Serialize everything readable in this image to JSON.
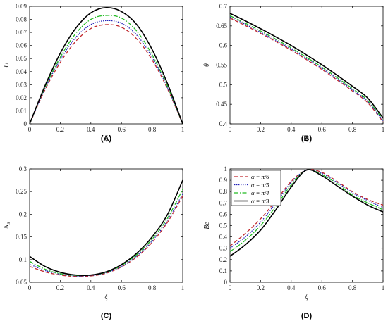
{
  "colors": {
    "series": [
      "#c0282d",
      "#1f1fb8",
      "#22bb22",
      "#000000"
    ],
    "axis": "#000000"
  },
  "dashes": [
    "5,3",
    "1.4,1.6",
    "6,2,1.5,2",
    ""
  ],
  "legend_labels": [
    "α = π/6",
    "α = π/5",
    "α = π/4",
    "α = π/3"
  ],
  "chart_data": [
    {
      "type": "line",
      "caption": "(A)",
      "xlabel": "ξ",
      "ylabel": "U",
      "xlim": [
        0,
        1
      ],
      "ylim": [
        0,
        0.09
      ],
      "xticks": [
        "0",
        "0.2",
        "0.4",
        "0.6",
        "0.8",
        "1"
      ],
      "yticks": [
        "0",
        "0.01",
        "0.02",
        "0.03",
        "0.04",
        "0.05",
        "0.06",
        "0.07",
        "0.08",
        "0.09"
      ],
      "x": [
        0,
        0.1,
        0.2,
        0.3,
        0.4,
        0.5,
        0.6,
        0.7,
        0.8,
        0.9,
        1
      ],
      "series": [
        {
          "values": [
            0,
            0.026,
            0.047,
            0.063,
            0.073,
            0.076,
            0.074,
            0.065,
            0.049,
            0.027,
            0
          ]
        },
        {
          "values": [
            0,
            0.027,
            0.049,
            0.066,
            0.076,
            0.079,
            0.077,
            0.068,
            0.051,
            0.028,
            0
          ]
        },
        {
          "values": [
            0,
            0.028,
            0.051,
            0.069,
            0.08,
            0.083,
            0.081,
            0.071,
            0.053,
            0.029,
            0
          ]
        },
        {
          "values": [
            0,
            0.029,
            0.054,
            0.073,
            0.085,
            0.089,
            0.086,
            0.076,
            0.057,
            0.031,
            0
          ]
        }
      ],
      "legend": false
    },
    {
      "type": "line",
      "caption": "(B)",
      "xlabel": "ξ",
      "ylabel": "θ",
      "xlim": [
        0,
        1
      ],
      "ylim": [
        0.4,
        0.7
      ],
      "xticks": [
        "0",
        "0.2",
        "0.4",
        "0.6",
        "0.8",
        "1"
      ],
      "yticks": [
        "0.4",
        "0.45",
        "0.5",
        "0.55",
        "0.6",
        "0.65",
        "0.7"
      ],
      "x": [
        0,
        0.1,
        0.2,
        0.3,
        0.4,
        0.5,
        0.6,
        0.7,
        0.8,
        0.9,
        1
      ],
      "series": [
        {
          "values": [
            0.67,
            0.651,
            0.631,
            0.61,
            0.588,
            0.564,
            0.539,
            0.512,
            0.484,
            0.454,
            0.405
          ]
        },
        {
          "values": [
            0.673,
            0.654,
            0.634,
            0.613,
            0.591,
            0.567,
            0.542,
            0.515,
            0.487,
            0.457,
            0.408
          ]
        },
        {
          "values": [
            0.676,
            0.657,
            0.637,
            0.616,
            0.594,
            0.57,
            0.545,
            0.518,
            0.49,
            0.46,
            0.411
          ]
        },
        {
          "values": [
            0.682,
            0.663,
            0.643,
            0.622,
            0.6,
            0.576,
            0.551,
            0.524,
            0.496,
            0.466,
            0.415
          ]
        }
      ],
      "legend": false
    },
    {
      "type": "line",
      "caption": "(C)",
      "xlabel": "ξ",
      "ylabel": "N",
      "ylabel_sub": "s",
      "xlim": [
        0,
        1
      ],
      "ylim": [
        0.05,
        0.3
      ],
      "xticks": [
        "0",
        "0.2",
        "0.4",
        "0.6",
        "0.8",
        "1"
      ],
      "yticks": [
        "0.05",
        "0.1",
        "0.15",
        "0.2",
        "0.25",
        "0.3"
      ],
      "x": [
        0,
        0.1,
        0.2,
        0.3,
        0.4,
        0.5,
        0.6,
        0.7,
        0.8,
        0.9,
        1
      ],
      "series": [
        {
          "values": [
            0.085,
            0.073,
            0.066,
            0.063,
            0.064,
            0.07,
            0.084,
            0.106,
            0.138,
            0.182,
            0.24
          ]
        },
        {
          "values": [
            0.09,
            0.076,
            0.068,
            0.064,
            0.065,
            0.071,
            0.085,
            0.108,
            0.141,
            0.186,
            0.245
          ]
        },
        {
          "values": [
            0.096,
            0.079,
            0.069,
            0.065,
            0.066,
            0.072,
            0.087,
            0.111,
            0.145,
            0.191,
            0.255
          ]
        },
        {
          "values": [
            0.107,
            0.085,
            0.072,
            0.066,
            0.066,
            0.073,
            0.089,
            0.114,
            0.15,
            0.199,
            0.275
          ]
        }
      ],
      "legend": false
    },
    {
      "type": "line",
      "caption": "(D)",
      "xlabel": "ξ",
      "ylabel": "Be",
      "xlim": [
        0,
        1
      ],
      "ylim": [
        0,
        1
      ],
      "xticks": [
        "0",
        "0.2",
        "0.4",
        "0.6",
        "0.8",
        "1"
      ],
      "yticks": [
        "0",
        "0.1",
        "0.2",
        "0.3",
        "0.4",
        "0.5",
        "0.6",
        "0.7",
        "0.8",
        "0.9",
        "1"
      ],
      "x": [
        0,
        0.1,
        0.2,
        0.3,
        0.4,
        0.5,
        0.6,
        0.7,
        0.8,
        0.9,
        1
      ],
      "series": [
        {
          "values": [
            0.32,
            0.43,
            0.56,
            0.72,
            0.89,
            0.99,
            0.97,
            0.89,
            0.8,
            0.73,
            0.68
          ]
        },
        {
          "values": [
            0.3,
            0.4,
            0.53,
            0.7,
            0.88,
            0.99,
            0.96,
            0.88,
            0.79,
            0.72,
            0.66
          ]
        },
        {
          "values": [
            0.27,
            0.37,
            0.5,
            0.67,
            0.86,
            0.99,
            0.95,
            0.87,
            0.77,
            0.7,
            0.64
          ]
        },
        {
          "values": [
            0.23,
            0.33,
            0.46,
            0.64,
            0.84,
            0.99,
            0.94,
            0.85,
            0.76,
            0.68,
            0.62
          ]
        }
      ],
      "legend": true,
      "legend_position": "top-left"
    }
  ]
}
